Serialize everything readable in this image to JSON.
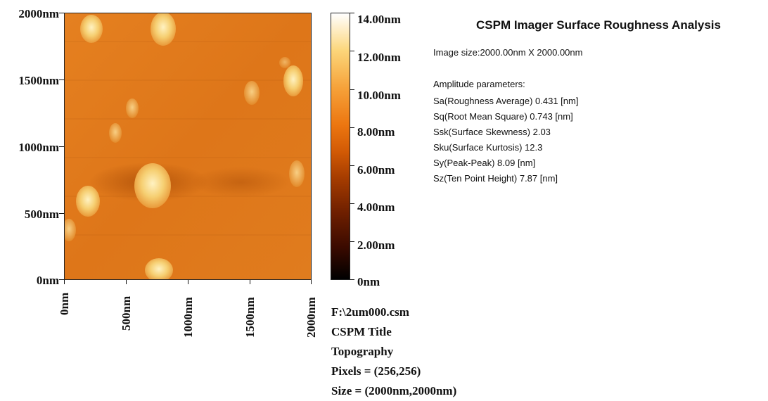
{
  "analysis": {
    "title": "CSPM Imager Surface Roughness Analysis",
    "image_size": "Image size:2000.00nm X 2000.00nm",
    "amplitude_heading": "Amplitude parameters:",
    "parameters": [
      "Sa(Roughness Average)    0.431 [nm]",
      "Sq(Root Mean Square)    0.743 [nm]",
      "Ssk(Surface Skewness)    2.03",
      "Sku(Surface Kurtosis)    12.3",
      "Sy(Peak-Peak)    8.09 [nm]",
      "Sz(Ten Point Height)    7.87  [nm]"
    ]
  },
  "y_axis": [
    "2000nm",
    "1500nm",
    "1000nm",
    "500nm",
    "0nm"
  ],
  "x_axis": [
    "0nm",
    "500nm",
    "1000nm",
    "1500nm",
    "2000nm"
  ],
  "colorbar": [
    "14.00nm",
    "12.00nm",
    "10.00nm",
    "8.00nm",
    "6.00nm",
    "4.00nm",
    "2.00nm",
    "0nm"
  ],
  "info": {
    "file": "F:\\2um000.csm",
    "title": "CSPM Title",
    "mode": "Topography",
    "pixels": "Pixels = (256,256)",
    "size": "Size = (2000nm,2000nm)"
  },
  "colors": {
    "background_orange": "#e07a1c",
    "grain_highlight": "#fbe39a",
    "shadow": "#b8560a"
  }
}
